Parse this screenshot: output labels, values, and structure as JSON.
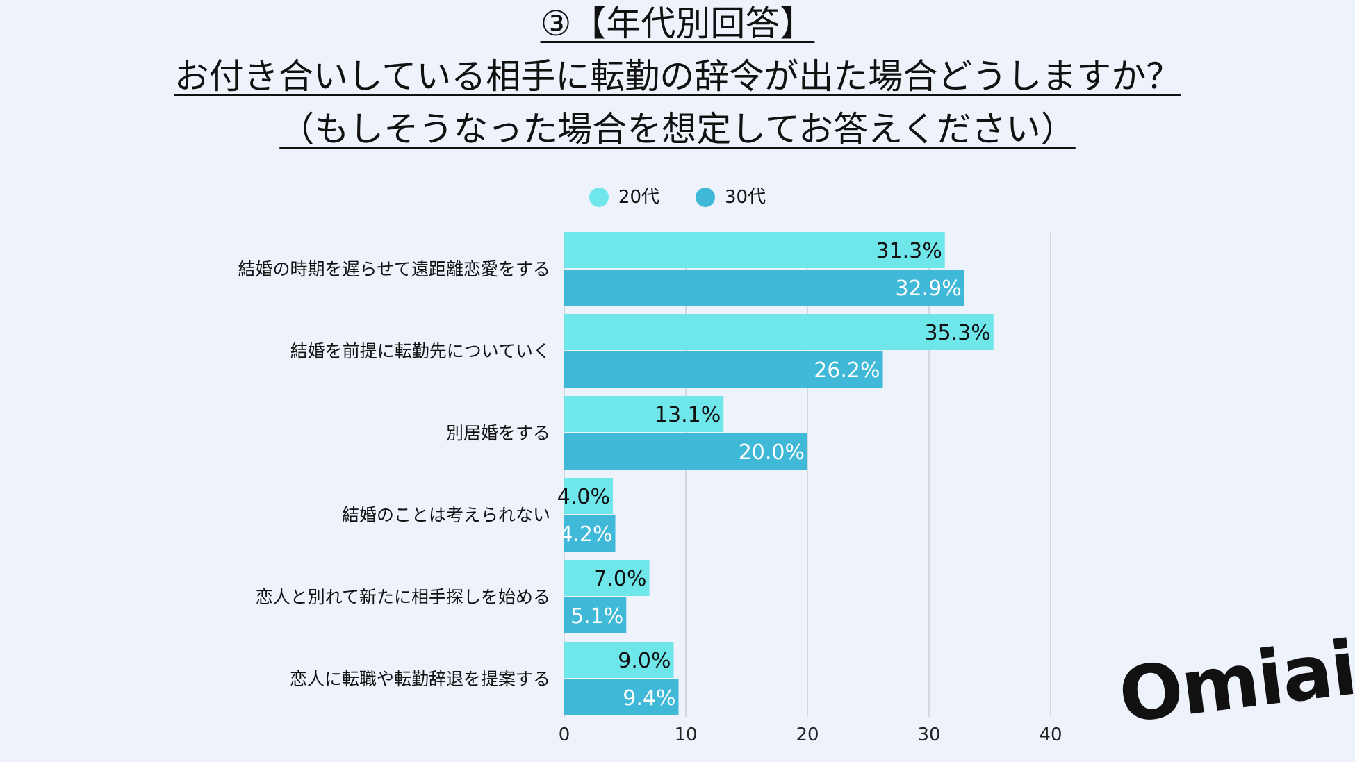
{
  "title": {
    "line1": "③【年代別回答】",
    "line2": "お付き合いしている相手に転勤の辞令が出た場合どうしますか？",
    "line3": "（もしそうなった場合を想定してお答えください）"
  },
  "logo_text": "Omiai",
  "chart_data": {
    "type": "bar",
    "orientation": "horizontal",
    "categories": [
      "結婚の時期を遅らせて遠距離恋愛をする",
      "結婚を前提に転勤先についていく",
      "別居婚をする",
      "結婚のことは考えられない",
      "恋人と別れて新たに相手探しを始める",
      "恋人に転職や転勤辞退を提案する"
    ],
    "series": [
      {
        "name": "20代",
        "color": "#6ee6ea",
        "values": [
          31.3,
          35.3,
          13.1,
          4.0,
          7.0,
          9.0
        ],
        "labels": [
          "31.3%",
          "35.3%",
          "13.1%",
          "4.0%",
          "7.0%",
          "9.0%"
        ]
      },
      {
        "name": "30代",
        "color": "#40b8d8",
        "values": [
          32.9,
          26.2,
          20.0,
          4.2,
          5.1,
          9.4
        ],
        "labels": [
          "32.9%",
          "26.2%",
          "20.0%",
          "4.2%",
          "5.1%",
          "9.4%"
        ]
      }
    ],
    "xlim": [
      0,
      40
    ],
    "xticks": [
      0,
      10,
      20,
      30,
      40
    ],
    "grid": true,
    "legend_position": "top-center"
  }
}
